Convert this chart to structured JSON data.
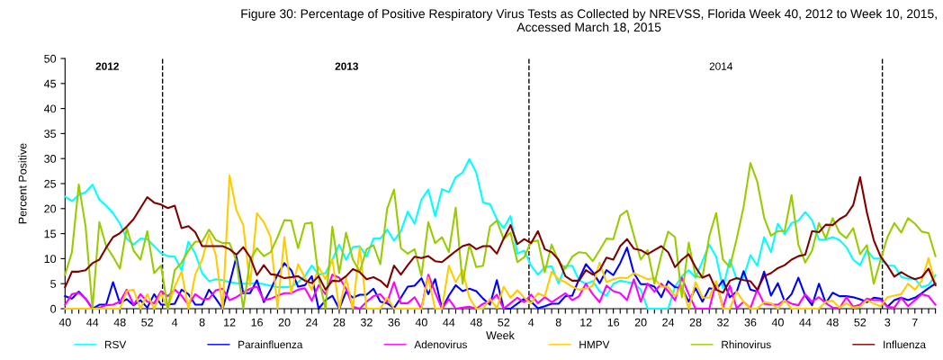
{
  "chart_data": {
    "type": "line",
    "title": "Figure 30: Percentage of Positive Respiratory Virus Tests as Collected by NREVSS, Florida Week 40, 2012 to Week 10, 2015, Accessed March 18, 2015",
    "xlabel": "Week",
    "ylabel": "Percent Positive",
    "categories": [
      "40",
      null,
      null,
      null,
      "44",
      null,
      null,
      null,
      "48",
      null,
      null,
      null,
      "52",
      null,
      null,
      null,
      "4",
      null,
      null,
      null,
      "8",
      null,
      null,
      null,
      "12",
      null,
      null,
      null,
      "16",
      null,
      null,
      null,
      "20",
      null,
      null,
      null,
      "24",
      null,
      null,
      null,
      "28",
      null,
      null,
      null,
      "32",
      null,
      null,
      null,
      "36",
      null,
      null,
      null,
      "40",
      null,
      null,
      null,
      "44",
      null,
      null,
      null,
      "48",
      null,
      null,
      null,
      "52",
      null,
      null,
      null,
      "4",
      null,
      null,
      null,
      "8",
      null,
      null,
      null,
      "12",
      null,
      null,
      null,
      "16",
      null,
      null,
      null,
      "20",
      null,
      null,
      null,
      "24",
      null,
      null,
      null,
      "28",
      null,
      null,
      null,
      "32",
      null,
      null,
      null,
      "36",
      null,
      null,
      null,
      "40",
      null,
      null,
      null,
      "44",
      null,
      null,
      null,
      "48",
      null,
      null,
      null,
      "52",
      null,
      null,
      null,
      "3",
      null,
      null,
      null,
      "7",
      null,
      null,
      null
    ],
    "series": [
      {
        "name": "RSV",
        "color": "#00ffff",
        "values": [
          22.4,
          21.5,
          22.7,
          23.3,
          24.8,
          21.8,
          20.6,
          19.1,
          17,
          14,
          12.8,
          14,
          13.9,
          12.5,
          11.1,
          10.5,
          10.4,
          7.7,
          13.4,
          11,
          7.1,
          5.5,
          5.9,
          5.7,
          5.3,
          5.1,
          5,
          5,
          5.1,
          4.9,
          4.6,
          4.3,
          4.3,
          4.4,
          5.3,
          6.5,
          8.6,
          6.8,
          7.1,
          9.8,
          12.8,
          9.8,
          12.3,
          12.5,
          10.4,
          14,
          14,
          15.8,
          13.6,
          15.5,
          19.4,
          17,
          21.8,
          23.8,
          18.5,
          23.9,
          23.3,
          26.3,
          27.2,
          29.9,
          27.2,
          21.2,
          20.9,
          17.9,
          16.1,
          18.5,
          11,
          11.6,
          8.6,
          6.8,
          8.3,
          8.5,
          5,
          8.5,
          8.6,
          5.7,
          5,
          5.5,
          3.5,
          2.6,
          5,
          5.6,
          5.3,
          5.1,
          3.8,
          0,
          0,
          0,
          0,
          4.4,
          6.5,
          7.7,
          6.2,
          9.5,
          12.8,
          10.4,
          4.1,
          9.8,
          5.9,
          6.2,
          10.7,
          8.6,
          14.3,
          11.3,
          17,
          14.9,
          17.1,
          17.6,
          19.3,
          17.7,
          13.8,
          13.8,
          14.3,
          13.7,
          12.3,
          9.8,
          8.7,
          11.7,
          10,
          10,
          8.6,
          8.6,
          6.4,
          6,
          6,
          4.3,
          4.7,
          6.7
        ]
      },
      {
        "name": "Parainfluenza",
        "color": "#0000ff",
        "values": [
          2.5,
          2,
          3.4,
          2,
          0,
          0.8,
          0.8,
          5.3,
          1.1,
          1.9,
          0.7,
          1.7,
          0.2,
          2.9,
          0.8,
          0.8,
          1,
          3.8,
          2.9,
          0.8,
          0.8,
          3.8,
          2,
          0,
          5,
          10.4,
          3.1,
          3.1,
          5.7,
          1.3,
          3.8,
          6.8,
          9.1,
          7.7,
          4.4,
          4.7,
          6.5,
          0,
          1.7,
          2.6,
          0,
          3.4,
          2.2,
          2.8,
          2.8,
          4,
          1.4,
          1.1,
          0.1,
          2.2,
          4.4,
          4.6,
          6.1,
          2.9,
          5.9,
          0,
          2.6,
          4.7,
          3.5,
          4,
          3.5,
          2,
          0.8,
          5.7,
          0,
          0,
          1,
          2,
          1.4,
          0.1,
          0.5,
          1,
          1,
          2.5,
          2.6,
          5.9,
          8.9,
          7.3,
          5.1,
          7.7,
          6.7,
          9.1,
          12.2,
          7.1,
          4.9,
          4.9,
          4.4,
          2.3,
          5.5,
          4.3,
          4.1,
          1.4,
          4.1,
          1.4,
          4.1,
          3.8,
          5.7,
          2.3,
          3.4,
          7.5,
          3.8,
          3.4,
          7.4,
          2.6,
          5.1,
          1.4,
          2.9,
          6.2,
          2.6,
          0.7,
          5,
          1.1,
          3.2,
          2.5,
          2.5,
          2.3,
          1.9,
          1.3,
          2.2,
          2,
          0.4,
          1.7,
          2.2,
          1.7,
          2.2,
          3.1,
          4.1,
          5
        ]
      },
      {
        "name": "Adenovirus",
        "color": "#ff00ff",
        "values": [
          0.8,
          2.9,
          3.2,
          2,
          0,
          0.2,
          0.7,
          0.8,
          1.4,
          3.8,
          0.8,
          2.9,
          1.4,
          1.1,
          3.5,
          2.5,
          3.8,
          2.6,
          0.8,
          2.9,
          1.9,
          2,
          3.7,
          4,
          1.7,
          2.3,
          3.2,
          4,
          4.4,
          1.7,
          2,
          2.6,
          3.1,
          3.1,
          3.8,
          4.1,
          1.6,
          4.7,
          2.9,
          6.8,
          6.2,
          4,
          0.4,
          0,
          1.4,
          2.5,
          2.9,
          1.3,
          5.3,
          1.1,
          1.1,
          2.3,
          0,
          6.8,
          3.2,
          0,
          1.9,
          0,
          0.2,
          0.4,
          0,
          1,
          1.4,
          2.8,
          0,
          1.1,
          2.2,
          1.3,
          2.8,
          1.1,
          2.3,
          1.3,
          2.2,
          3.1,
          1.7,
          2.5,
          5,
          2.9,
          1.3,
          4.6,
          3.5,
          3.1,
          1.7,
          5.9,
          1.4,
          5,
          3.4,
          5,
          3.5,
          1.7,
          6.2,
          2.9,
          0,
          0,
          0,
          5.3,
          0.2,
          4.6,
          0.1,
          1.4,
          0.1,
          3.8,
          1,
          0.8,
          0.8,
          1.7,
          1,
          0.7,
          2.9,
          1.4,
          2.3,
          1.1,
          0.2,
          0.1,
          2.3,
          0.4,
          0.8,
          2,
          1.7,
          1.7,
          0.4,
          0.2,
          2.2,
          0.5,
          1.7,
          2.9,
          2.5,
          0.8
        ]
      },
      {
        "name": "HMPV",
        "color": "#ffcc00",
        "values": [
          0,
          0,
          0,
          0,
          0,
          0,
          0,
          0,
          0,
          3.5,
          3.8,
          0,
          2.9,
          0,
          3.1,
          0,
          4.4,
          7.4,
          0,
          6.8,
          9.8,
          14.9,
          10.7,
          0,
          26.6,
          19.7,
          16.7,
          4.7,
          19.1,
          17.3,
          14.3,
          0,
          14.3,
          3.2,
          8.9,
          6.2,
          3.8,
          8.3,
          5.9,
          9.9,
          0,
          6.1,
          0,
          12.3,
          0,
          0,
          0,
          2.2,
          0,
          0,
          0,
          0,
          0,
          6.2,
          0,
          0,
          8.6,
          5.3,
          7.7,
          2.2,
          0,
          0,
          2,
          0.1,
          4.4,
          2.2,
          3.7,
          2.2,
          1.1,
          3.1,
          2.5,
          7.4,
          5.9,
          5.3,
          4.4,
          3.8,
          4,
          4.6,
          9.2,
          5.3,
          5.9,
          6.2,
          6.1,
          7.1,
          6.5,
          5.9,
          6.1,
          4.4,
          4.4,
          2.5,
          4.6,
          0,
          5.3,
          2.2,
          2.2,
          5.5,
          0,
          0,
          3.4,
          1.4,
          0,
          0,
          1.3,
          1.1,
          0,
          1.7,
          0,
          0,
          0,
          0,
          0,
          1.4,
          1.6,
          0.2,
          1.1,
          0.2,
          0.4,
          1.7,
          1,
          0.5,
          2.3,
          2.6,
          2.9,
          5,
          3.8,
          5.6,
          10.1,
          4.7
        ]
      },
      {
        "name": "Rhinovirus",
        "color": "#99cc00",
        "values": [
          6.8,
          11.3,
          24.8,
          16.4,
          0,
          17.3,
          12.5,
          10.4,
          8,
          16.1,
          11.6,
          9.8,
          15.5,
          7.1,
          8.6,
          0,
          7.7,
          9.2,
          11.6,
          13.4,
          13.4,
          15.8,
          13.7,
          13.1,
          13.1,
          9.5,
          0,
          9.8,
          12.1,
          10.5,
          11.3,
          14.3,
          17.7,
          17.6,
          12.1,
          17,
          17.2,
          6.2,
          0,
          16.4,
          7.1,
          15.2,
          9.8,
          7.4,
          11.9,
          12.7,
          8.9,
          20,
          23.8,
          12.1,
          11,
          11.9,
          6.5,
          17.3,
          13.1,
          14.3,
          11.3,
          20.2,
          5,
          12.8,
          8.3,
          8.6,
          16.4,
          17.6,
          13.9,
          15.2,
          9.3,
          10.3,
          13.4,
          13.6,
          7.3,
          12.8,
          9.5,
          8,
          10.4,
          11.3,
          11.1,
          9.5,
          11.7,
          14,
          13.9,
          18.6,
          19.6,
          14.6,
          9.8,
          11.7,
          5,
          10.7,
          15.4,
          14.3,
          2.3,
          13.2,
          6.5,
          6.2,
          14.5,
          19.1,
          9.8,
          8.3,
          14,
          20.3,
          29.1,
          25.4,
          18.2,
          14.6,
          15.5,
          15.5,
          22.7,
          12.8,
          9.2,
          11.6,
          17.1,
          14,
          18.1,
          15.2,
          14.1,
          16.1,
          10.9,
          12.7,
          5,
          9.8,
          14.3,
          17.1,
          15.2,
          18.1,
          17,
          15.4,
          15.1,
          10.5
        ]
      },
      {
        "name": "Influenza",
        "color": "#800000",
        "values": [
          4.3,
          7.4,
          7.4,
          7.7,
          9.1,
          9.8,
          12.2,
          14.3,
          15.1,
          16.4,
          17.9,
          20.1,
          22.3,
          21.2,
          20.8,
          20.1,
          20.6,
          16.1,
          16.5,
          15.3,
          12.5,
          12.5,
          12.5,
          12.5,
          11.9,
          10.8,
          12.3,
          10.3,
          6.7,
          8.7,
          6.9,
          6.7,
          6.1,
          6.3,
          6.5,
          5.6,
          5.1,
          6.5,
          3.8,
          5.6,
          5.5,
          6.5,
          7.9,
          7.3,
          5.9,
          6.3,
          5.6,
          4.3,
          8.6,
          6.8,
          8.7,
          10.4,
          10.1,
          10.5,
          9.5,
          9.3,
          10.4,
          11.5,
          12.5,
          12.9,
          11.9,
          12.5,
          12.5,
          11,
          14,
          16.7,
          12.9,
          13.9,
          13.1,
          15.5,
          11.9,
          11.3,
          9.8,
          6.5,
          5.6,
          5.6,
          7.7,
          6.8,
          7.7,
          10.2,
          9.8,
          12.5,
          13.9,
          12,
          11.7,
          10.9,
          11.7,
          12.5,
          11.3,
          8.3,
          9.8,
          10.9,
          8.3,
          6.2,
          6.8,
          3.8,
          3.2,
          5.6,
          6.1,
          5.7,
          5.5,
          3.8,
          6.5,
          7.1,
          8.1,
          8.7,
          9.8,
          10.5,
          10.8,
          15.5,
          15.3,
          16.8,
          16.7,
          17.9,
          18.7,
          20.7,
          26.3,
          19.2,
          13.7,
          10.4,
          8.6,
          6.4,
          7.3,
          6.5,
          5.9,
          6.3,
          8,
          4.7
        ]
      }
    ],
    "ylim": [
      0,
      50
    ],
    "yticks": [
      0,
      5,
      10,
      15,
      20,
      25,
      30,
      35,
      40,
      45,
      50
    ],
    "annotations": [
      "2012",
      "2013",
      "2014"
    ],
    "grid": false,
    "legend": "bottom",
    "marker": "none",
    "line_style": "solid"
  }
}
